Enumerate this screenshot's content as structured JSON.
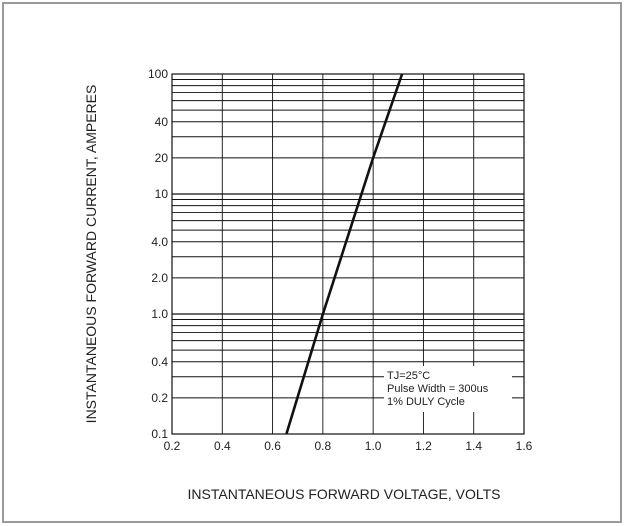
{
  "chart_data": {
    "type": "line",
    "title": "",
    "xlabel": "INSTANTANEOUS FORWARD VOLTAGE, VOLTS",
    "ylabel": "INSTANTANEOUS FORWARD CURRENT, AMPERES",
    "xlim": [
      0.2,
      1.6
    ],
    "ylim": [
      0.1,
      100
    ],
    "yscale": "log",
    "grid": true,
    "x_ticks": [
      0.2,
      0.4,
      0.6,
      0.8,
      1.0,
      1.2,
      1.4,
      1.6
    ],
    "x_tick_labels": [
      "0.2",
      "0.4",
      "0.6",
      "0.8",
      "1.0",
      "1.2",
      "1.4",
      "1.6"
    ],
    "y_tick_labels": [
      {
        "value": 0.1,
        "label": "0.1"
      },
      {
        "value": 0.2,
        "label": "0.2"
      },
      {
        "value": 0.4,
        "label": "0.4"
      },
      {
        "value": 1,
        "label": "1.0"
      },
      {
        "value": 2,
        "label": "2.0"
      },
      {
        "value": 4,
        "label": "4.0"
      },
      {
        "value": 10,
        "label": "10"
      },
      {
        "value": 20,
        "label": "20"
      },
      {
        "value": 40,
        "label": "40"
      },
      {
        "value": 100,
        "label": "100"
      }
    ],
    "series": [
      {
        "color": "#111111",
        "x": [
          0.655,
          0.8,
          1.0,
          1.115
        ],
        "y": [
          0.1,
          1.0,
          20,
          100
        ]
      }
    ],
    "annotations": [
      "TJ=25°C",
      "Pulse Width = 300us",
      "1% DULY Cycle"
    ]
  }
}
